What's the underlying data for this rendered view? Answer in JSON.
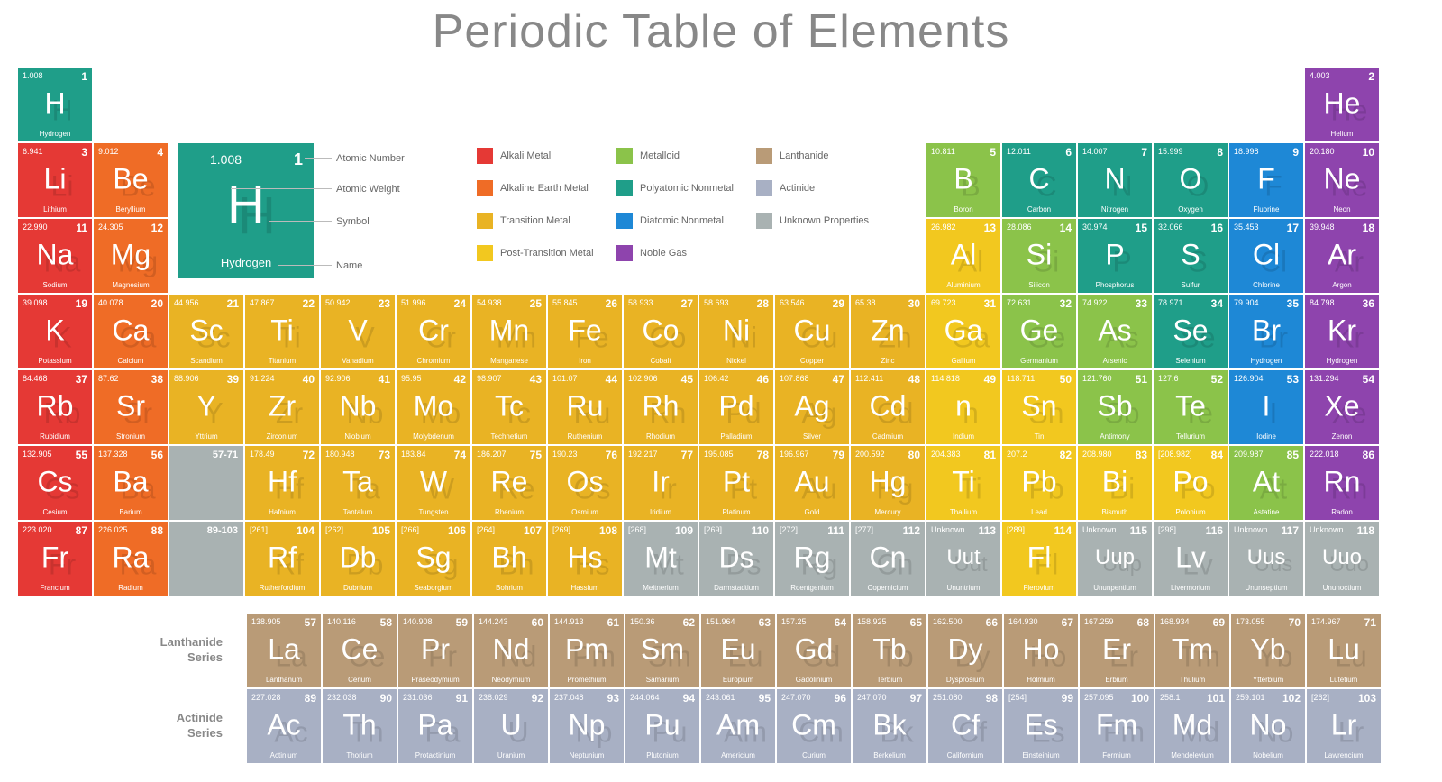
{
  "title": "Periodic Table of Elements",
  "colors": {
    "alkali_metal": "#e53935",
    "alkaline_earth": "#ef6c26",
    "transition_metal": "#e9b324",
    "post_transition": "#f2c81f",
    "metalloid": "#8bc34a",
    "polyatomic_nonmetal": "#1f9e89",
    "diatomic_nonmetal": "#1e88d6",
    "noble_gas": "#8e44ad",
    "lanthanide": "#b99b77",
    "actinide": "#a8b0c4",
    "unknown": "#a9b2b2",
    "title_color": "#888888",
    "label_color": "#666666",
    "background": "#ffffff"
  },
  "keycard": {
    "mass": "1.008",
    "num": "1",
    "sym": "H",
    "name": "Hydrogen",
    "labels": {
      "atomic_number": "Atomic Number",
      "atomic_weight": "Atomic Weight",
      "symbol": "Symbol",
      "name": "Name"
    },
    "bg": "#1f9e89"
  },
  "legend": [
    {
      "label": "Alkali Metal",
      "color": "#e53935"
    },
    {
      "label": "Alkaline Earth Metal",
      "color": "#ef6c26"
    },
    {
      "label": "Transition Metal",
      "color": "#e9b324"
    },
    {
      "label": "Post-Transition Metal",
      "color": "#f2c81f"
    },
    {
      "label": "Metalloid",
      "color": "#8bc34a"
    },
    {
      "label": "Polyatomic Nonmetal",
      "color": "#1f9e89"
    },
    {
      "label": "Diatomic Nonmetal",
      "color": "#1e88d6"
    },
    {
      "label": "Noble Gas",
      "color": "#8e44ad"
    },
    {
      "label": "Lanthanide",
      "color": "#b99b77"
    },
    {
      "label": "Actinide",
      "color": "#a8b0c4"
    },
    {
      "label": "Unknown  Properties",
      "color": "#a9b2b2"
    }
  ],
  "series_labels": {
    "lanthanide": "Lanthanide\nSeries",
    "actinide": "Actinide\nSeries"
  },
  "placeholder_ranges": {
    "lanth": "57-71",
    "act": "89-103"
  },
  "elements": [
    {
      "n": 1,
      "s": "H",
      "m": "1.008",
      "name": "Hydrogen",
      "row": 1,
      "col": 1,
      "cat": "polyatomic_nonmetal"
    },
    {
      "n": 2,
      "s": "He",
      "m": "4.003",
      "name": "Helium",
      "row": 1,
      "col": 18,
      "cat": "noble_gas"
    },
    {
      "n": 3,
      "s": "Li",
      "m": "6.941",
      "name": "Lithium",
      "row": 2,
      "col": 1,
      "cat": "alkali_metal"
    },
    {
      "n": 4,
      "s": "Be",
      "m": "9.012",
      "name": "Beryllium",
      "row": 2,
      "col": 2,
      "cat": "alkaline_earth"
    },
    {
      "n": 5,
      "s": "B",
      "m": "10.811",
      "name": "Boron",
      "row": 2,
      "col": 13,
      "cat": "metalloid"
    },
    {
      "n": 6,
      "s": "C",
      "m": "12.011",
      "name": "Carbon",
      "row": 2,
      "col": 14,
      "cat": "polyatomic_nonmetal"
    },
    {
      "n": 7,
      "s": "N",
      "m": "14.007",
      "name": "Nitrogen",
      "row": 2,
      "col": 15,
      "cat": "polyatomic_nonmetal"
    },
    {
      "n": 8,
      "s": "O",
      "m": "15.999",
      "name": "Oxygen",
      "row": 2,
      "col": 16,
      "cat": "polyatomic_nonmetal"
    },
    {
      "n": 9,
      "s": "F",
      "m": "18.998",
      "name": "Fluorine",
      "row": 2,
      "col": 17,
      "cat": "diatomic_nonmetal"
    },
    {
      "n": 10,
      "s": "Ne",
      "m": "20.180",
      "name": "Neon",
      "row": 2,
      "col": 18,
      "cat": "noble_gas"
    },
    {
      "n": 11,
      "s": "Na",
      "m": "22.990",
      "name": "Sodium",
      "row": 3,
      "col": 1,
      "cat": "alkali_metal"
    },
    {
      "n": 12,
      "s": "Mg",
      "m": "24.305",
      "name": "Magnesium",
      "row": 3,
      "col": 2,
      "cat": "alkaline_earth"
    },
    {
      "n": 13,
      "s": "Al",
      "m": "26.982",
      "name": "Aluminium",
      "row": 3,
      "col": 13,
      "cat": "post_transition"
    },
    {
      "n": 14,
      "s": "Si",
      "m": "28.086",
      "name": "Silicon",
      "row": 3,
      "col": 14,
      "cat": "metalloid"
    },
    {
      "n": 15,
      "s": "P",
      "m": "30.974",
      "name": "Phosphorus",
      "row": 3,
      "col": 15,
      "cat": "polyatomic_nonmetal"
    },
    {
      "n": 16,
      "s": "S",
      "m": "32.066",
      "name": "Sulfur",
      "row": 3,
      "col": 16,
      "cat": "polyatomic_nonmetal"
    },
    {
      "n": 17,
      "s": "Cl",
      "m": "35.453",
      "name": "Chlorine",
      "row": 3,
      "col": 17,
      "cat": "diatomic_nonmetal"
    },
    {
      "n": 18,
      "s": "Ar",
      "m": "39.948",
      "name": "Argon",
      "row": 3,
      "col": 18,
      "cat": "noble_gas"
    },
    {
      "n": 19,
      "s": "K",
      "m": "39.098",
      "name": "Potassium",
      "row": 4,
      "col": 1,
      "cat": "alkali_metal"
    },
    {
      "n": 20,
      "s": "Ca",
      "m": "40.078",
      "name": "Calcium",
      "row": 4,
      "col": 2,
      "cat": "alkaline_earth"
    },
    {
      "n": 21,
      "s": "Sc",
      "m": "44.956",
      "name": "Scandium",
      "row": 4,
      "col": 3,
      "cat": "transition_metal"
    },
    {
      "n": 22,
      "s": "Ti",
      "m": "47.867",
      "name": "Titanium",
      "row": 4,
      "col": 4,
      "cat": "transition_metal"
    },
    {
      "n": 23,
      "s": "V",
      "m": "50.942",
      "name": "Vanadium",
      "row": 4,
      "col": 5,
      "cat": "transition_metal"
    },
    {
      "n": 24,
      "s": "Cr",
      "m": "51.996",
      "name": "Chromium",
      "row": 4,
      "col": 6,
      "cat": "transition_metal"
    },
    {
      "n": 25,
      "s": "Mn",
      "m": "54.938",
      "name": "Manganese",
      "row": 4,
      "col": 7,
      "cat": "transition_metal"
    },
    {
      "n": 26,
      "s": "Fe",
      "m": "55.845",
      "name": "Iron",
      "row": 4,
      "col": 8,
      "cat": "transition_metal"
    },
    {
      "n": 27,
      "s": "Co",
      "m": "58.933",
      "name": "Cobalt",
      "row": 4,
      "col": 9,
      "cat": "transition_metal"
    },
    {
      "n": 28,
      "s": "Ni",
      "m": "58.693",
      "name": "Nickel",
      "row": 4,
      "col": 10,
      "cat": "transition_metal"
    },
    {
      "n": 29,
      "s": "Cu",
      "m": "63.546",
      "name": "Copper",
      "row": 4,
      "col": 11,
      "cat": "transition_metal"
    },
    {
      "n": 30,
      "s": "Zn",
      "m": "65.38",
      "name": "Zinc",
      "row": 4,
      "col": 12,
      "cat": "transition_metal"
    },
    {
      "n": 31,
      "s": "Ga",
      "m": "69.723",
      "name": "Gallium",
      "row": 4,
      "col": 13,
      "cat": "post_transition"
    },
    {
      "n": 32,
      "s": "Ge",
      "m": "72.631",
      "name": "Germanium",
      "row": 4,
      "col": 14,
      "cat": "metalloid"
    },
    {
      "n": 33,
      "s": "As",
      "m": "74.922",
      "name": "Arsenic",
      "row": 4,
      "col": 15,
      "cat": "metalloid"
    },
    {
      "n": 34,
      "s": "Se",
      "m": "78.971",
      "name": "Selenium",
      "row": 4,
      "col": 16,
      "cat": "polyatomic_nonmetal"
    },
    {
      "n": 35,
      "s": "Br",
      "m": "79.904",
      "name": "Hydrogen",
      "row": 4,
      "col": 17,
      "cat": "diatomic_nonmetal"
    },
    {
      "n": 36,
      "s": "Kr",
      "m": "84.798",
      "name": "Hydrogen",
      "row": 4,
      "col": 18,
      "cat": "noble_gas"
    },
    {
      "n": 37,
      "s": "Rb",
      "m": "84.468",
      "name": "Rubidium",
      "row": 5,
      "col": 1,
      "cat": "alkali_metal"
    },
    {
      "n": 38,
      "s": "Sr",
      "m": "87.62",
      "name": "Stronium",
      "row": 5,
      "col": 2,
      "cat": "alkaline_earth"
    },
    {
      "n": 39,
      "s": "Y",
      "m": "88.906",
      "name": "Yttrium",
      "row": 5,
      "col": 3,
      "cat": "transition_metal"
    },
    {
      "n": 40,
      "s": "Zr",
      "m": "91.224",
      "name": "Zirconium",
      "row": 5,
      "col": 4,
      "cat": "transition_metal"
    },
    {
      "n": 41,
      "s": "Nb",
      "m": "92.906",
      "name": "Niobium",
      "row": 5,
      "col": 5,
      "cat": "transition_metal"
    },
    {
      "n": 42,
      "s": "Mo",
      "m": "95.95",
      "name": "Molybdenum",
      "row": 5,
      "col": 6,
      "cat": "transition_metal"
    },
    {
      "n": 43,
      "s": "Tc",
      "m": "98.907",
      "name": "Technetium",
      "row": 5,
      "col": 7,
      "cat": "transition_metal"
    },
    {
      "n": 44,
      "s": "Ru",
      "m": "101.07",
      "name": "Ruthenium",
      "row": 5,
      "col": 8,
      "cat": "transition_metal"
    },
    {
      "n": 45,
      "s": "Rh",
      "m": "102.906",
      "name": "Rhodium",
      "row": 5,
      "col": 9,
      "cat": "transition_metal"
    },
    {
      "n": 46,
      "s": "Pd",
      "m": "106.42",
      "name": "Palladium",
      "row": 5,
      "col": 10,
      "cat": "transition_metal"
    },
    {
      "n": 47,
      "s": "Ag",
      "m": "107.868",
      "name": "Silver",
      "row": 5,
      "col": 11,
      "cat": "transition_metal"
    },
    {
      "n": 48,
      "s": "Cd",
      "m": "112.411",
      "name": "Cadmium",
      "row": 5,
      "col": 12,
      "cat": "transition_metal"
    },
    {
      "n": 49,
      "s": "n",
      "m": "114.818",
      "name": "Indium",
      "row": 5,
      "col": 13,
      "cat": "post_transition"
    },
    {
      "n": 50,
      "s": "Sn",
      "m": "118.711",
      "name": "Tin",
      "row": 5,
      "col": 14,
      "cat": "post_transition"
    },
    {
      "n": 51,
      "s": "Sb",
      "m": "121.760",
      "name": "Antimony",
      "row": 5,
      "col": 15,
      "cat": "metalloid"
    },
    {
      "n": 52,
      "s": "Te",
      "m": "127.6",
      "name": "Tellurium",
      "row": 5,
      "col": 16,
      "cat": "metalloid"
    },
    {
      "n": 53,
      "s": "I",
      "m": "126.904",
      "name": "Iodine",
      "row": 5,
      "col": 17,
      "cat": "diatomic_nonmetal"
    },
    {
      "n": 54,
      "s": "Xe",
      "m": "131.294",
      "name": "Zenon",
      "row": 5,
      "col": 18,
      "cat": "noble_gas"
    },
    {
      "n": 55,
      "s": "Cs",
      "m": "132.905",
      "name": "Cesium",
      "row": 6,
      "col": 1,
      "cat": "alkali_metal"
    },
    {
      "n": 56,
      "s": "Ba",
      "m": "137.328",
      "name": "Barium",
      "row": 6,
      "col": 2,
      "cat": "alkaline_earth"
    },
    {
      "n": 72,
      "s": "Hf",
      "m": "178.49",
      "name": "Hafnium",
      "row": 6,
      "col": 4,
      "cat": "transition_metal"
    },
    {
      "n": 73,
      "s": "Ta",
      "m": "180.948",
      "name": "Tantalum",
      "row": 6,
      "col": 5,
      "cat": "transition_metal"
    },
    {
      "n": 74,
      "s": "W",
      "m": "183.84",
      "name": "Tungsten",
      "row": 6,
      "col": 6,
      "cat": "transition_metal"
    },
    {
      "n": 75,
      "s": "Re",
      "m": "186.207",
      "name": "Rhenium",
      "row": 6,
      "col": 7,
      "cat": "transition_metal"
    },
    {
      "n": 76,
      "s": "Os",
      "m": "190.23",
      "name": "Osmium",
      "row": 6,
      "col": 8,
      "cat": "transition_metal"
    },
    {
      "n": 77,
      "s": "Ir",
      "m": "192.217",
      "name": "Iridium",
      "row": 6,
      "col": 9,
      "cat": "transition_metal"
    },
    {
      "n": 78,
      "s": "Pt",
      "m": "195.085",
      "name": "Platinum",
      "row": 6,
      "col": 10,
      "cat": "transition_metal"
    },
    {
      "n": 79,
      "s": "Au",
      "m": "196.967",
      "name": "Gold",
      "row": 6,
      "col": 11,
      "cat": "transition_metal"
    },
    {
      "n": 80,
      "s": "Hg",
      "m": "200.592",
      "name": "Mercury",
      "row": 6,
      "col": 12,
      "cat": "transition_metal"
    },
    {
      "n": 81,
      "s": "Ti",
      "m": "204.383",
      "name": "Thallium",
      "row": 6,
      "col": 13,
      "cat": "post_transition"
    },
    {
      "n": 82,
      "s": "Pb",
      "m": "207.2",
      "name": "Lead",
      "row": 6,
      "col": 14,
      "cat": "post_transition"
    },
    {
      "n": 83,
      "s": "Bi",
      "m": "208.980",
      "name": "Bismuth",
      "row": 6,
      "col": 15,
      "cat": "post_transition"
    },
    {
      "n": 84,
      "s": "Po",
      "m": "[208.982]",
      "name": "Polonium",
      "row": 6,
      "col": 16,
      "cat": "post_transition"
    },
    {
      "n": 85,
      "s": "At",
      "m": "209.987",
      "name": "Astatine",
      "row": 6,
      "col": 17,
      "cat": "metalloid"
    },
    {
      "n": 86,
      "s": "Rn",
      "m": "222.018",
      "name": "Radon",
      "row": 6,
      "col": 18,
      "cat": "noble_gas"
    },
    {
      "n": 87,
      "s": "Fr",
      "m": "223.020",
      "name": "Francium",
      "row": 7,
      "col": 1,
      "cat": "alkali_metal"
    },
    {
      "n": 88,
      "s": "Ra",
      "m": "226.025",
      "name": "Radium",
      "row": 7,
      "col": 2,
      "cat": "alkaline_earth"
    },
    {
      "n": 104,
      "s": "Rf",
      "m": "[261]",
      "name": "Rutherfordium",
      "row": 7,
      "col": 4,
      "cat": "transition_metal"
    },
    {
      "n": 105,
      "s": "Db",
      "m": "[262]",
      "name": "Dubnium",
      "row": 7,
      "col": 5,
      "cat": "transition_metal"
    },
    {
      "n": 106,
      "s": "Sg",
      "m": "[266]",
      "name": "Seaborgium",
      "row": 7,
      "col": 6,
      "cat": "transition_metal"
    },
    {
      "n": 107,
      "s": "Bh",
      "m": "[264]",
      "name": "Bohrium",
      "row": 7,
      "col": 7,
      "cat": "transition_metal"
    },
    {
      "n": 108,
      "s": "Hs",
      "m": "[269]",
      "name": "Hassium",
      "row": 7,
      "col": 8,
      "cat": "transition_metal"
    },
    {
      "n": 109,
      "s": "Mt",
      "m": "[268]",
      "name": "Meitnerium",
      "row": 7,
      "col": 9,
      "cat": "unknown"
    },
    {
      "n": 110,
      "s": "Ds",
      "m": "[269]",
      "name": "Darmstadtium",
      "row": 7,
      "col": 10,
      "cat": "unknown"
    },
    {
      "n": 111,
      "s": "Rg",
      "m": "[272]",
      "name": "Roentgenium",
      "row": 7,
      "col": 11,
      "cat": "unknown"
    },
    {
      "n": 112,
      "s": "Cn",
      "m": "[277]",
      "name": "Copernicium",
      "row": 7,
      "col": 12,
      "cat": "unknown"
    },
    {
      "n": 113,
      "s": "Uut",
      "m": "Unknown",
      "name": "Ununtrium",
      "row": 7,
      "col": 13,
      "cat": "unknown"
    },
    {
      "n": 114,
      "s": "Fl",
      "m": "[289]",
      "name": "Flerovium",
      "row": 7,
      "col": 14,
      "cat": "post_transition"
    },
    {
      "n": 115,
      "s": "Uup",
      "m": "Unknown",
      "name": "Ununpentium",
      "row": 7,
      "col": 15,
      "cat": "unknown"
    },
    {
      "n": 116,
      "s": "Lv",
      "m": "[298]",
      "name": "Livermorium",
      "row": 7,
      "col": 16,
      "cat": "unknown"
    },
    {
      "n": 117,
      "s": "Uus",
      "m": "Unknown",
      "name": "Ununseptium",
      "row": 7,
      "col": 17,
      "cat": "unknown"
    },
    {
      "n": 118,
      "s": "Uuo",
      "m": "Unknown",
      "name": "Ununoctium",
      "row": 7,
      "col": 18,
      "cat": "unknown"
    }
  ],
  "lanthanides": [
    {
      "n": 57,
      "s": "La",
      "m": "138.905",
      "name": "Lanthanum",
      "cat": "lanthanide"
    },
    {
      "n": 58,
      "s": "Ce",
      "m": "140.116",
      "name": "Cerium",
      "cat": "lanthanide"
    },
    {
      "n": 59,
      "s": "Pr",
      "m": "140.908",
      "name": "Praseodymium",
      "cat": "lanthanide"
    },
    {
      "n": 60,
      "s": "Nd",
      "m": "144.243",
      "name": "Neodymium",
      "cat": "lanthanide"
    },
    {
      "n": 61,
      "s": "Pm",
      "m": "144.913",
      "name": "Promethium",
      "cat": "lanthanide"
    },
    {
      "n": 62,
      "s": "Sm",
      "m": "150.36",
      "name": "Samarium",
      "cat": "lanthanide"
    },
    {
      "n": 63,
      "s": "Eu",
      "m": "151.964",
      "name": "Europium",
      "cat": "lanthanide"
    },
    {
      "n": 64,
      "s": "Gd",
      "m": "157.25",
      "name": "Gadolinium",
      "cat": "lanthanide"
    },
    {
      "n": 65,
      "s": "Tb",
      "m": "158.925",
      "name": "Terbium",
      "cat": "lanthanide"
    },
    {
      "n": 66,
      "s": "Dy",
      "m": "162.500",
      "name": "Dysprosium",
      "cat": "lanthanide"
    },
    {
      "n": 67,
      "s": "Ho",
      "m": "164.930",
      "name": "Holmium",
      "cat": "lanthanide"
    },
    {
      "n": 68,
      "s": "Er",
      "m": "167.259",
      "name": "Erbium",
      "cat": "lanthanide"
    },
    {
      "n": 69,
      "s": "Tm",
      "m": "168.934",
      "name": "Thulium",
      "cat": "lanthanide"
    },
    {
      "n": 70,
      "s": "Yb",
      "m": "173.055",
      "name": "Ytterbium",
      "cat": "lanthanide"
    },
    {
      "n": 71,
      "s": "Lu",
      "m": "174.967",
      "name": "Lutetium",
      "cat": "lanthanide"
    }
  ],
  "actinides": [
    {
      "n": 89,
      "s": "Ac",
      "m": "227.028",
      "name": "Actinium",
      "cat": "actinide"
    },
    {
      "n": 90,
      "s": "Th",
      "m": "232.038",
      "name": "Thorium",
      "cat": "actinide"
    },
    {
      "n": 91,
      "s": "Pa",
      "m": "231.036",
      "name": "Protactinium",
      "cat": "actinide"
    },
    {
      "n": 92,
      "s": "U",
      "m": "238.029",
      "name": "Uranium",
      "cat": "actinide"
    },
    {
      "n": 93,
      "s": "Np",
      "m": "237.048",
      "name": "Neptunium",
      "cat": "actinide"
    },
    {
      "n": 94,
      "s": "Pu",
      "m": "244.064",
      "name": "Plutonium",
      "cat": "actinide"
    },
    {
      "n": 95,
      "s": "Am",
      "m": "243.061",
      "name": "Americium",
      "cat": "actinide"
    },
    {
      "n": 96,
      "s": "Cm",
      "m": "247.070",
      "name": "Curium",
      "cat": "actinide"
    },
    {
      "n": 97,
      "s": "Bk",
      "m": "247.070",
      "name": "Berkelium",
      "cat": "actinide"
    },
    {
      "n": 98,
      "s": "Cf",
      "m": "251.080",
      "name": "Californium",
      "cat": "actinide"
    },
    {
      "n": 99,
      "s": "Es",
      "m": "[254]",
      "name": "Einsteinium",
      "cat": "actinide"
    },
    {
      "n": 100,
      "s": "Fm",
      "m": "257.095",
      "name": "Fermium",
      "cat": "actinide"
    },
    {
      "n": 101,
      "s": "Md",
      "m": "258.1",
      "name": "Mendelevium",
      "cat": "actinide"
    },
    {
      "n": 102,
      "s": "No",
      "m": "259.101",
      "name": "Nobelium",
      "cat": "actinide"
    },
    {
      "n": 103,
      "s": "Lr",
      "m": "[262]",
      "name": "Lawrencium",
      "cat": "actinide"
    }
  ]
}
